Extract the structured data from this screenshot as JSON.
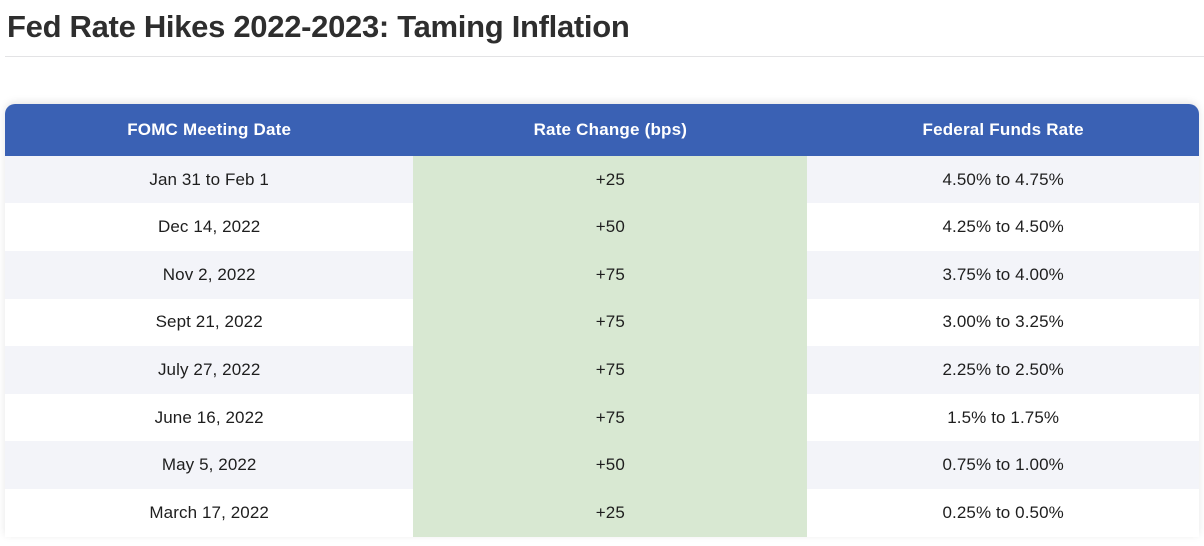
{
  "page": {
    "title": "Fed Rate Hikes 2022-2023: Taming Inflation"
  },
  "table": {
    "columns": [
      "FOMC Meeting Date",
      "Rate Change (bps)",
      "Federal Funds Rate"
    ],
    "rows": [
      {
        "date": "Jan 31 to Feb 1",
        "change": "+25",
        "rate": "4.50% to 4.75%"
      },
      {
        "date": "Dec 14, 2022",
        "change": "+50",
        "rate": "4.25% to 4.50%"
      },
      {
        "date": "Nov 2, 2022",
        "change": "+75",
        "rate": "3.75% to 4.00%"
      },
      {
        "date": "Sept 21, 2022",
        "change": "+75",
        "rate": "3.00% to 3.25%"
      },
      {
        "date": "July 27, 2022",
        "change": "+75",
        "rate": "2.25% to 2.50%"
      },
      {
        "date": "June 16, 2022",
        "change": "+75",
        "rate": "1.5% to 1.75%"
      },
      {
        "date": "May 5, 2022",
        "change": "+50",
        "rate": "0.75% to 1.00%"
      },
      {
        "date": "March 17, 2022",
        "change": "+25",
        "rate": "0.25% to 0.50%"
      }
    ],
    "colors": {
      "header_bg": "#3a61b4",
      "header_text": "#ffffff",
      "change_col_bg": "#d8e8d2",
      "row_alt_bg": "#f3f4f9",
      "row_bg": "#ffffff",
      "title_text": "#2e2e2e",
      "cell_text": "#1e1e1e",
      "divider": "#e3e3e5"
    }
  },
  "chart_data": {
    "type": "table",
    "title": "Fed Rate Hikes 2022-2023: Taming Inflation",
    "columns": [
      "FOMC Meeting Date",
      "Rate Change (bps)",
      "Federal Funds Rate"
    ],
    "rows": [
      [
        "Jan 31 to Feb 1",
        "+25",
        "4.50% to 4.75%"
      ],
      [
        "Dec 14, 2022",
        "+50",
        "4.25% to 4.50%"
      ],
      [
        "Nov 2, 2022",
        "+75",
        "3.75% to 4.00%"
      ],
      [
        "Sept 21, 2022",
        "+75",
        "3.00% to 3.25%"
      ],
      [
        "July 27, 2022",
        "+75",
        "2.25% to 2.50%"
      ],
      [
        "June 16, 2022",
        "+75",
        "1.5% to 1.75%"
      ],
      [
        "May 5, 2022",
        "+50",
        "0.75% to 1.00%"
      ],
      [
        "March 17, 2022",
        "+25",
        "0.25% to 0.50%"
      ]
    ],
    "rate_change_bps_values": [
      25,
      50,
      75,
      75,
      75,
      75,
      50,
      25
    ],
    "layout_hints": {
      "highlighted_column": "Rate Change (bps)",
      "row_striping": true,
      "header_style": "solid-blue"
    }
  }
}
